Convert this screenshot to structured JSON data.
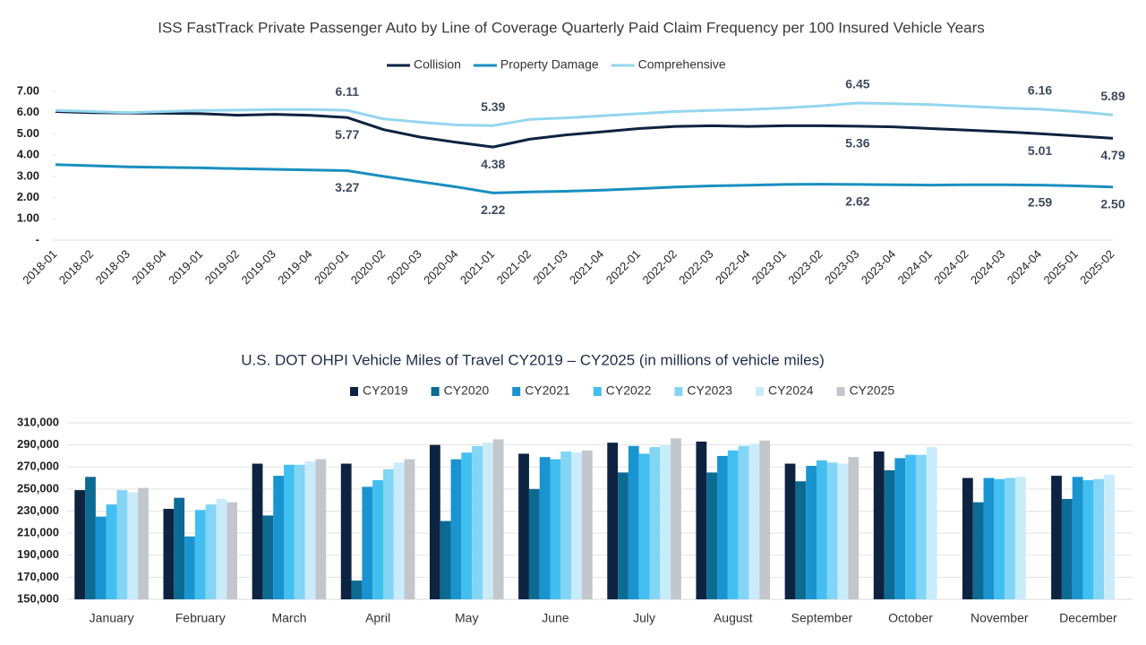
{
  "chart_data": [
    {
      "type": "line",
      "title": "ISS FastTrack Private Passenger Auto by Line of Coverage Quarterly Paid Claim Frequency per 100 Insured Vehicle Years",
      "categories": [
        "2018-01",
        "2018-02",
        "2018-03",
        "2018-04",
        "2019-01",
        "2019-02",
        "2019-03",
        "2019-04",
        "2020-01",
        "2020-02",
        "2020-03",
        "2020-04",
        "2021-01",
        "2021-02",
        "2021-03",
        "2021-04",
        "2022-01",
        "2022-02",
        "2022-03",
        "2022-04",
        "2023-01",
        "2023-02",
        "2023-03",
        "2023-04",
        "2024-01",
        "2024-02",
        "2024-03",
        "2024-04",
        "2025-01",
        "2025-02"
      ],
      "series": [
        {
          "name": "Collision",
          "color": "#0d2341",
          "values": [
            6.05,
            6.0,
            5.98,
            5.97,
            5.95,
            5.88,
            5.92,
            5.87,
            5.77,
            5.2,
            4.85,
            4.6,
            4.38,
            4.75,
            4.95,
            5.1,
            5.25,
            5.35,
            5.38,
            5.35,
            5.38,
            5.38,
            5.36,
            5.33,
            5.25,
            5.18,
            5.1,
            5.01,
            4.9,
            4.79
          ],
          "value_labels": [
            null,
            null,
            null,
            null,
            null,
            null,
            null,
            null,
            "5.77",
            null,
            null,
            null,
            "4.38",
            null,
            null,
            null,
            null,
            null,
            null,
            null,
            null,
            null,
            "5.36",
            null,
            null,
            null,
            null,
            "5.01",
            null,
            "4.79"
          ]
        },
        {
          "name": "Property Damage",
          "color": "#1a8fc0",
          "values": [
            3.55,
            3.5,
            3.45,
            3.42,
            3.4,
            3.36,
            3.33,
            3.3,
            3.27,
            3.0,
            2.75,
            2.5,
            2.22,
            2.27,
            2.3,
            2.35,
            2.42,
            2.5,
            2.55,
            2.58,
            2.62,
            2.63,
            2.62,
            2.6,
            2.59,
            2.6,
            2.6,
            2.59,
            2.55,
            2.5
          ],
          "value_labels": [
            null,
            null,
            null,
            null,
            null,
            null,
            null,
            null,
            "3.27",
            null,
            null,
            null,
            "2.22",
            null,
            null,
            null,
            null,
            null,
            null,
            null,
            null,
            null,
            "2.62",
            null,
            null,
            null,
            null,
            "2.59",
            null,
            "2.50"
          ]
        },
        {
          "name": "Comprehensive",
          "color": "#94d6ee",
          "values": [
            6.1,
            6.05,
            6.0,
            6.05,
            6.1,
            6.12,
            6.15,
            6.15,
            6.11,
            5.7,
            5.55,
            5.42,
            5.39,
            5.68,
            5.75,
            5.85,
            5.95,
            6.05,
            6.1,
            6.15,
            6.22,
            6.32,
            6.45,
            6.42,
            6.38,
            6.3,
            6.22,
            6.16,
            6.05,
            5.89
          ],
          "value_labels": [
            null,
            null,
            null,
            null,
            null,
            null,
            null,
            null,
            "6.11",
            null,
            null,
            null,
            "5.39",
            null,
            null,
            null,
            null,
            null,
            null,
            null,
            null,
            null,
            "6.45",
            null,
            null,
            null,
            null,
            "6.16",
            null,
            "5.89"
          ]
        }
      ],
      "ylim": [
        0,
        7
      ],
      "yticks": [
        {
          "value": 0,
          "label": "-"
        },
        {
          "value": 1,
          "label": "1.00"
        },
        {
          "value": 2,
          "label": "2.00"
        },
        {
          "value": 3,
          "label": "3.00"
        },
        {
          "value": 4,
          "label": "4.00"
        },
        {
          "value": 5,
          "label": "5.00"
        },
        {
          "value": 6,
          "label": "6.00"
        },
        {
          "value": 7,
          "label": "7.00"
        }
      ],
      "grid": false
    },
    {
      "type": "bar",
      "title": "U.S. DOT OHPI Vehicle Miles of Travel CY2019 – CY2025 (in millions of vehicle miles)",
      "categories": [
        "January",
        "February",
        "March",
        "April",
        "May",
        "June",
        "July",
        "August",
        "September",
        "October",
        "November",
        "December"
      ],
      "series": [
        {
          "name": "CY2019",
          "color": "#0d2341",
          "values": [
            249000,
            232000,
            273000,
            273000,
            290000,
            282000,
            292000,
            293000,
            273000,
            284000,
            260000,
            262000
          ]
        },
        {
          "name": "CY2020",
          "color": "#0b6b93",
          "values": [
            261000,
            242000,
            226000,
            167000,
            221000,
            250000,
            265000,
            265000,
            257000,
            267000,
            238000,
            241000
          ]
        },
        {
          "name": "CY2021",
          "color": "#1a94d0",
          "values": [
            225000,
            207000,
            262000,
            252000,
            277000,
            279000,
            289000,
            280000,
            271000,
            278000,
            260000,
            261000
          ]
        },
        {
          "name": "CY2022",
          "color": "#42bff0",
          "values": [
            236000,
            231000,
            272000,
            258000,
            283000,
            277000,
            282000,
            285000,
            276000,
            281000,
            259000,
            258000
          ]
        },
        {
          "name": "CY2023",
          "color": "#82d5f5",
          "values": [
            249000,
            236000,
            272000,
            268000,
            289000,
            284000,
            288000,
            289000,
            274000,
            281000,
            260000,
            259000
          ]
        },
        {
          "name": "CY2024",
          "color": "#c9ecfa",
          "values": [
            247000,
            241000,
            275000,
            274000,
            292000,
            283000,
            290000,
            291000,
            273000,
            288000,
            261000,
            263000
          ]
        },
        {
          "name": "CY2025",
          "color": "#c3c6cb",
          "values": [
            251000,
            238000,
            277000,
            277000,
            295000,
            285000,
            296000,
            294000,
            279000,
            null,
            null,
            null
          ]
        }
      ],
      "ylim": [
        150000,
        310000
      ],
      "yticks": [
        {
          "value": 150000,
          "label": "150,000"
        },
        {
          "value": 170000,
          "label": "170,000"
        },
        {
          "value": 190000,
          "label": "190,000"
        },
        {
          "value": 210000,
          "label": "210,000"
        },
        {
          "value": 230000,
          "label": "230,000"
        },
        {
          "value": 250000,
          "label": "250,000"
        },
        {
          "value": 270000,
          "label": "270,000"
        },
        {
          "value": 290000,
          "label": "290,000"
        },
        {
          "value": 310000,
          "label": "310,000"
        }
      ],
      "grid": true
    }
  ]
}
